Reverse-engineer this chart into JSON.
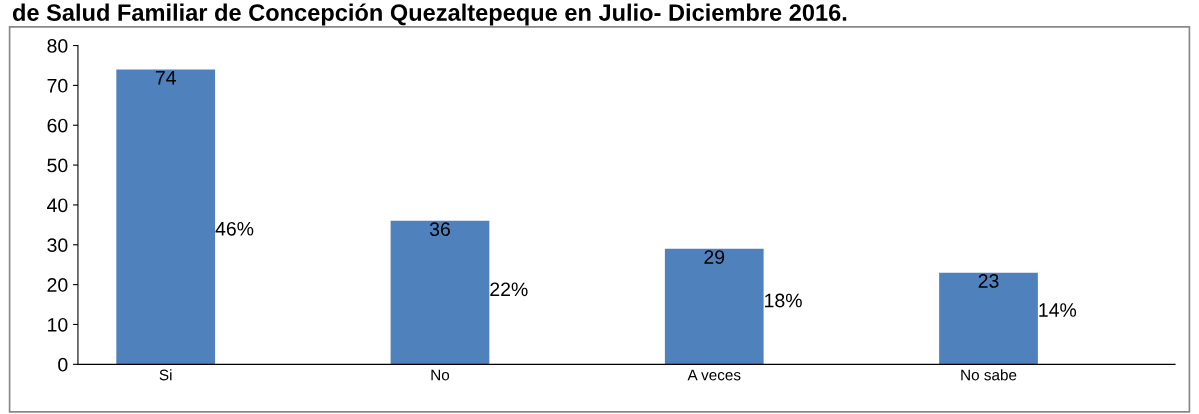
{
  "chart_data": {
    "type": "bar",
    "title": "de Salud Familiar de Concepción Quezaltepeque en Julio- Diciembre 2016.",
    "categories": [
      "Si",
      "No",
      "A veces",
      "No sabe"
    ],
    "values": [
      74,
      36,
      29,
      23
    ],
    "color": "#4f81bd",
    "ylim": [
      0,
      80
    ],
    "yticks": [
      0,
      10,
      20,
      30,
      40,
      50,
      60,
      70,
      80
    ],
    "grid": false,
    "data_labels": true,
    "annotations": [
      "46%",
      "22%",
      "18%",
      "14%"
    ]
  }
}
